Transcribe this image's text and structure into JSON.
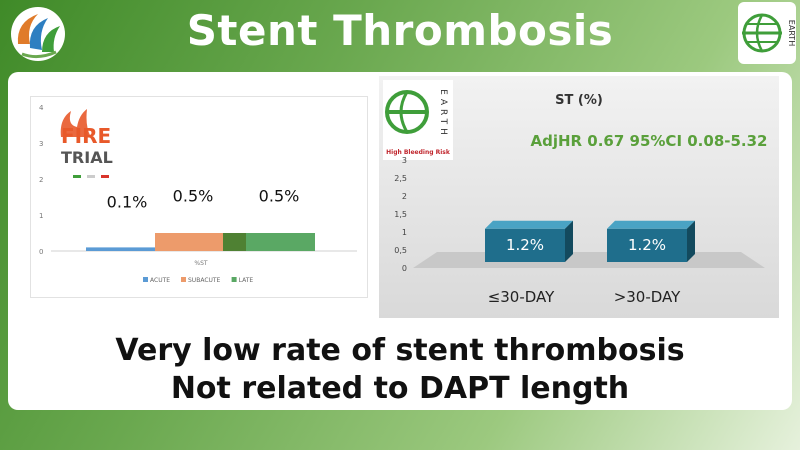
{
  "page": {
    "title": "Stent Thrombosis",
    "conclusion_line1": "Very low rate of stent thrombosis",
    "conclusion_line2": "Not related to DAPT length",
    "accent_green": "#5aa03b",
    "title_color": "#ffffff"
  },
  "logos": {
    "left_icon": "swirl-logo-icon",
    "right_icon": "earth-logo-icon",
    "right_text": "EARTH"
  },
  "chart_data": [
    {
      "type": "bar",
      "title": "",
      "badge": {
        "fire": "FIRE",
        "trial": "TRIAL"
      },
      "categories": [
        "%ST"
      ],
      "series": [
        {
          "name": "ACUTE",
          "values": [
            0.1
          ],
          "label": "0.1%",
          "color": "#5b9bd5"
        },
        {
          "name": "SUBACUTE",
          "values": [
            0.5
          ],
          "label": "0.5%",
          "color": "#ed9b6b"
        },
        {
          "name": "LATE",
          "values": [
            0.5
          ],
          "label": "0.5%",
          "color": "#5aa864"
        }
      ],
      "yticks": [
        "4",
        "3",
        "2",
        "1",
        "0"
      ],
      "ylim": [
        0,
        4
      ],
      "legend_position": "bottom",
      "grid": false
    },
    {
      "type": "bar",
      "title": "ST (%)",
      "annotation": "AdjHR 0.67 95%CI 0.08-5.32",
      "logo_caption": "High Bleeding Risk",
      "logo_text": "EARTH",
      "categories": [
        "≤30-DAY",
        ">30-DAY"
      ],
      "values": [
        1.2,
        1.2
      ],
      "labels": [
        "1.2%",
        "1.2%"
      ],
      "yticks": [
        "3",
        "2,5",
        "2",
        "1,5",
        "1",
        "0,5",
        "0"
      ],
      "ylim": [
        0,
        3
      ],
      "bar_color": "#1f6e8c",
      "grid": false
    }
  ]
}
